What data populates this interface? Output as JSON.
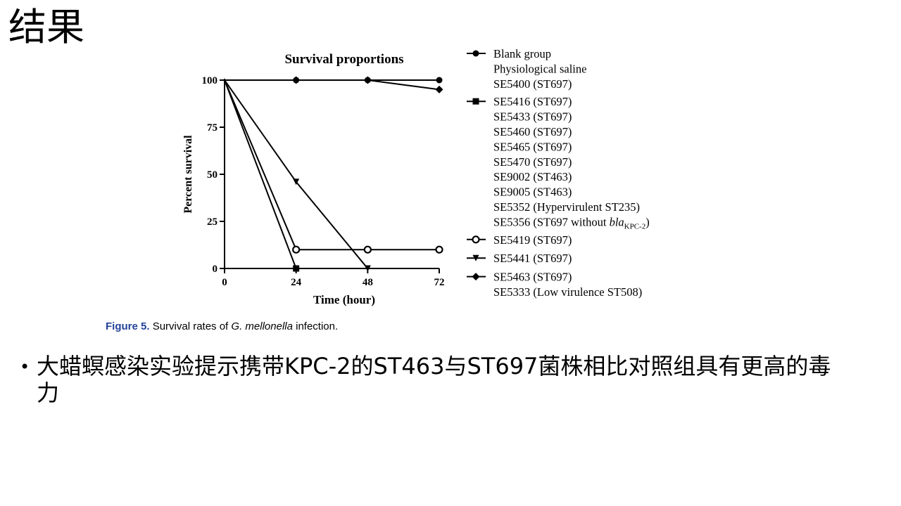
{
  "slide": {
    "title": "结果",
    "caption_label": "Figure 5.",
    "caption_pre": "Survival rates of ",
    "caption_italic": "G. mellonella",
    "caption_post": " infection.",
    "bullet_marker": "•",
    "bullet_text": "大蜡螟感染实验提示携带KPC-2的ST463与ST697菌株相比对照组具有更高的毒力"
  },
  "chart_data": {
    "type": "line",
    "title": "Survival proportions",
    "xlabel": "Time (hour)",
    "ylabel": "Percent survival",
    "x_ticks": [
      0,
      24,
      48,
      72
    ],
    "y_ticks": [
      0,
      25,
      50,
      75,
      100
    ],
    "xlim": [
      0,
      72
    ],
    "ylim": [
      0,
      100
    ],
    "grid": false,
    "legend_position": "right",
    "series": [
      {
        "group": "circle",
        "marker": "filled-circle",
        "entries": [
          {
            "name": "Blank group"
          },
          {
            "name": "Physiological saline"
          },
          {
            "name": "SE5400 (ST697)"
          }
        ],
        "x": [
          0,
          24,
          48,
          72
        ],
        "y": [
          100,
          100,
          100,
          100
        ]
      },
      {
        "group": "square",
        "marker": "filled-square",
        "entries": [
          {
            "name": "SE5416 (ST697)"
          },
          {
            "name": "SE5433 (ST697)"
          },
          {
            "name": "SE5460 (ST697)"
          },
          {
            "name": "SE5465 (ST697)"
          },
          {
            "name": "SE5470 (ST697)"
          },
          {
            "name": "SE9002 (ST463)"
          },
          {
            "name": "SE9005 (ST463)"
          },
          {
            "name": "SE5352 (Hypervirulent ST235)"
          },
          {
            "name": "SE5356 (ST697 without ",
            "italic": "bla",
            "sub": "KPC-2",
            "suffix": ")"
          }
        ],
        "x": [
          0,
          24
        ],
        "y": [
          100,
          0
        ]
      },
      {
        "group": "open-circle",
        "marker": "open-circle",
        "entries": [
          {
            "name": "SE5419 (ST697)"
          }
        ],
        "x": [
          0,
          24,
          48,
          72
        ],
        "y": [
          100,
          10,
          10,
          10
        ]
      },
      {
        "group": "triangle",
        "marker": "filled-triangle-down",
        "entries": [
          {
            "name": "SE5441 (ST697)"
          }
        ],
        "x": [
          0,
          24,
          48
        ],
        "y": [
          100,
          46,
          0
        ]
      },
      {
        "group": "diamond",
        "marker": "filled-diamond",
        "entries": [
          {
            "name": "SE5463 (ST697)"
          },
          {
            "name": "SE5333 (Low virulence ST508)"
          }
        ],
        "x": [
          0,
          24,
          48,
          72
        ],
        "y": [
          100,
          100,
          100,
          95
        ]
      }
    ]
  }
}
